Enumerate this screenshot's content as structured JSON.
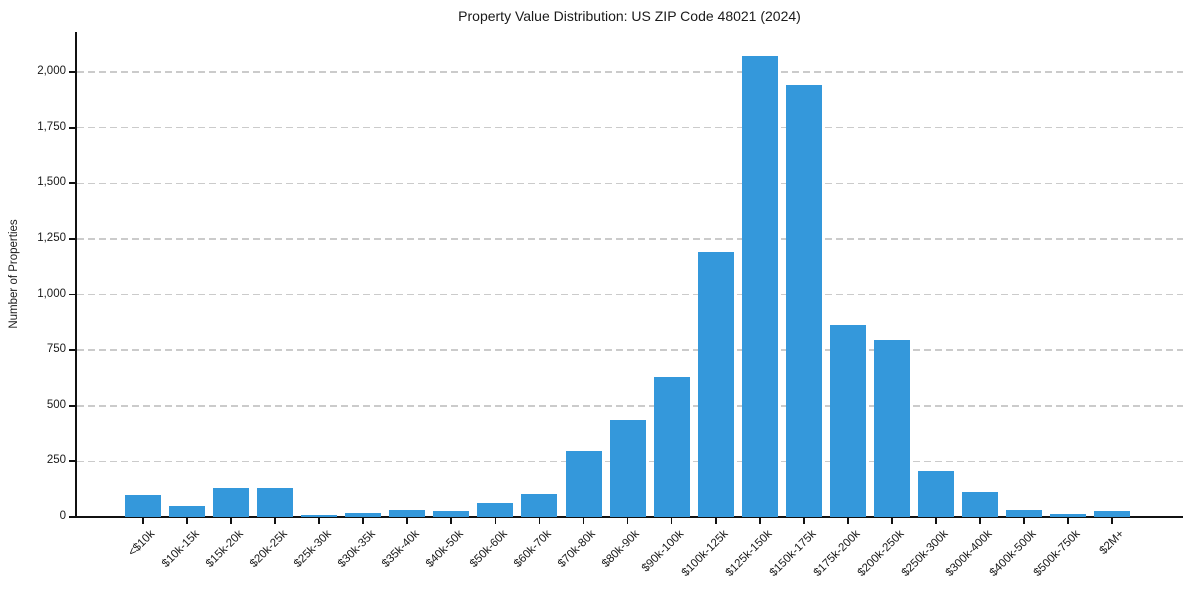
{
  "chart_data": {
    "type": "bar",
    "title": "Property Value Distribution: US ZIP Code 48021 (2024)",
    "xlabel": "",
    "ylabel": "Number of Properties",
    "categories": [
      "<$10k",
      "$10k-15k",
      "$15k-20k",
      "$20k-25k",
      "$25k-30k",
      "$30k-35k",
      "$35k-40k",
      "$40k-50k",
      "$50k-60k",
      "$60k-70k",
      "$70k-80k",
      "$80k-90k",
      "$90k-100k",
      "$100k-125k",
      "$125k-150k",
      "$150k-175k",
      "$175k-200k",
      "$200k-250k",
      "$250k-300k",
      "$300k-400k",
      "$400k-500k",
      "$500k-750k",
      "$2M+"
    ],
    "values": [
      100,
      48,
      130,
      130,
      8,
      17,
      33,
      25,
      64,
      105,
      295,
      435,
      630,
      1193,
      2072,
      1942,
      862,
      795,
      205,
      113,
      32,
      15,
      28
    ],
    "ylim": [
      0,
      2180
    ],
    "yticks": [
      0,
      250,
      500,
      750,
      1000,
      1250,
      1500,
      1750,
      2000
    ],
    "ytick_labels": [
      "0",
      "250",
      "500",
      "750",
      "1,000",
      "1,250",
      "1,500",
      "1,750",
      "2,000"
    ],
    "bar_color": "#3498db",
    "grid": "horizontal-dashed",
    "grid_color": "#cbcbcb",
    "legend": "none",
    "x_label_rotation_deg": 45
  }
}
